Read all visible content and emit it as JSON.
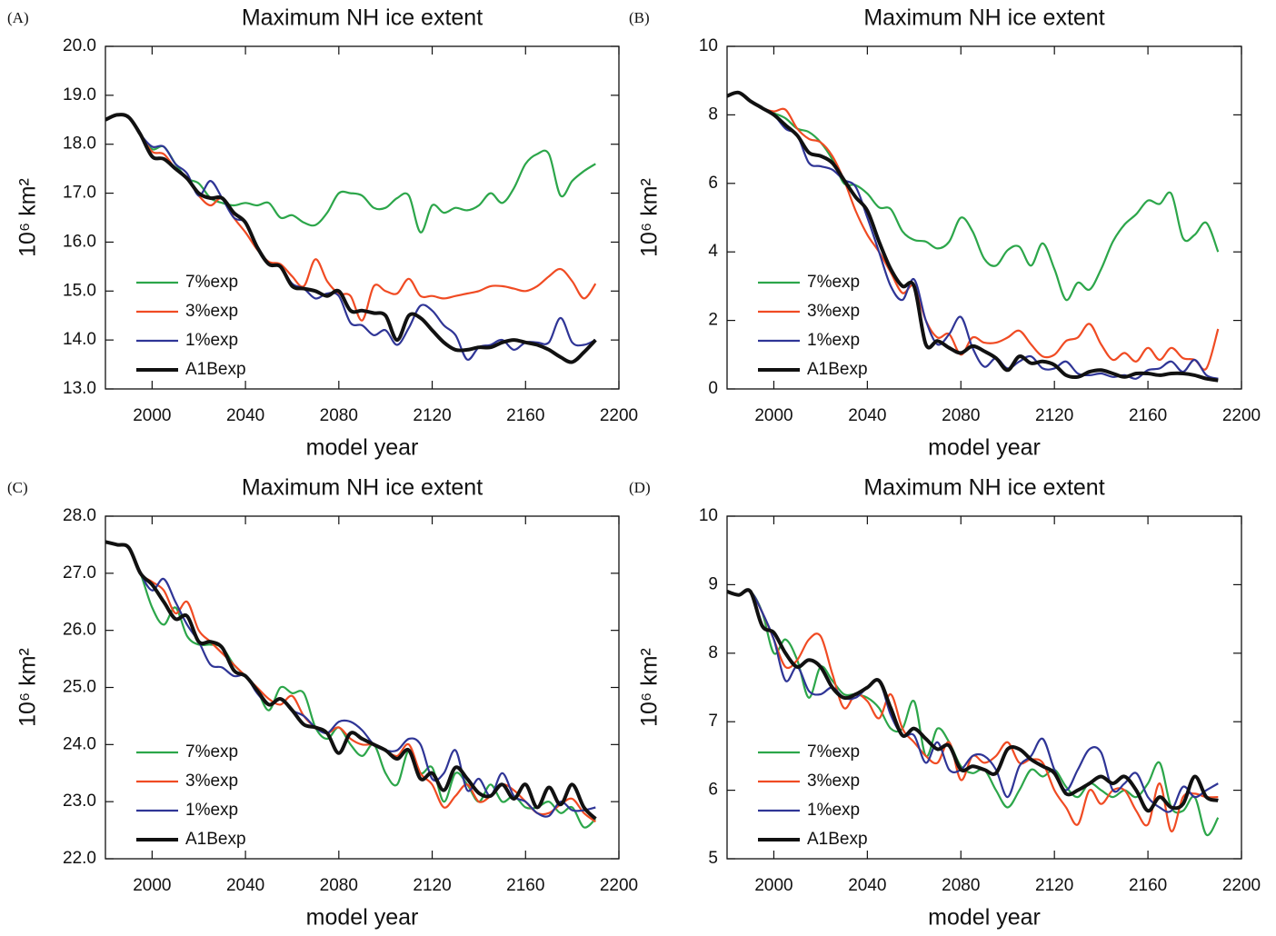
{
  "chart_data": [
    {
      "type": "line",
      "label": "(A)",
      "title": "Maximum NH ice extent",
      "xlabel": "model year",
      "ylabel": "10⁶ km²",
      "legend": "lower left",
      "xlim": [
        1980,
        2200
      ],
      "xticks": [
        2000,
        2040,
        2080,
        2120,
        2160,
        2200
      ],
      "ylim": [
        13,
        20
      ],
      "yticks": [
        {
          "value": 13,
          "label": "13.0"
        },
        {
          "value": 14,
          "label": "14.0"
        },
        {
          "value": 15,
          "label": "15.0"
        },
        {
          "value": 16,
          "label": "16.0"
        },
        {
          "value": 17,
          "label": "17.0"
        },
        {
          "value": 18,
          "label": "18.0"
        },
        {
          "value": 19,
          "label": "19.0"
        },
        {
          "value": 20,
          "label": "20.0"
        }
      ],
      "x": [
        1980,
        1985,
        1990,
        1995,
        2000,
        2005,
        2010,
        2015,
        2020,
        2025,
        2030,
        2035,
        2040,
        2045,
        2050,
        2055,
        2060,
        2065,
        2070,
        2075,
        2080,
        2085,
        2090,
        2095,
        2100,
        2105,
        2110,
        2115,
        2120,
        2125,
        2130,
        2135,
        2140,
        2145,
        2150,
        2155,
        2160,
        2165,
        2170,
        2175,
        2180,
        2185,
        2190
      ],
      "series": [
        {
          "name": "7%exp",
          "color": "#2ca64a",
          "values": [
            18.5,
            18.6,
            18.55,
            18.2,
            17.9,
            17.95,
            17.6,
            17.3,
            17.2,
            16.9,
            16.8,
            16.75,
            16.8,
            16.75,
            16.8,
            16.5,
            16.55,
            16.4,
            16.35,
            16.6,
            17.0,
            17.0,
            16.95,
            16.7,
            16.7,
            16.9,
            16.95,
            16.2,
            16.75,
            16.6,
            16.7,
            16.65,
            16.75,
            17.0,
            16.8,
            17.1,
            17.6,
            17.8,
            17.8,
            16.95,
            17.25,
            17.45,
            17.6
          ]
        },
        {
          "name": "3%exp",
          "color": "#f04b23",
          "values": [
            18.5,
            18.6,
            18.55,
            18.2,
            17.85,
            17.8,
            17.5,
            17.3,
            16.95,
            16.75,
            16.9,
            16.5,
            16.2,
            15.85,
            15.6,
            15.55,
            15.3,
            15.1,
            15.65,
            15.2,
            14.95,
            14.9,
            14.4,
            15.1,
            15.0,
            14.95,
            15.25,
            14.9,
            14.9,
            14.85,
            14.9,
            14.95,
            15.0,
            15.1,
            15.1,
            15.05,
            15.0,
            15.1,
            15.3,
            15.45,
            15.2,
            14.85,
            15.15
          ]
        },
        {
          "name": "1%exp",
          "color": "#2f3596",
          "values": [
            18.5,
            18.6,
            18.55,
            18.2,
            17.95,
            17.95,
            17.6,
            17.4,
            16.95,
            17.25,
            16.9,
            16.5,
            16.4,
            15.9,
            15.55,
            15.5,
            15.15,
            15.05,
            14.85,
            14.95,
            14.9,
            14.35,
            14.3,
            14.1,
            14.2,
            13.9,
            14.25,
            14.7,
            14.6,
            14.3,
            14.1,
            13.6,
            13.85,
            13.9,
            14.0,
            13.8,
            13.95,
            13.95,
            13.95,
            14.45,
            13.95,
            13.9,
            14.0
          ]
        },
        {
          "name": "A1Bexp",
          "color": "#111111",
          "values": [
            18.5,
            18.6,
            18.55,
            18.2,
            17.75,
            17.7,
            17.5,
            17.3,
            17.0,
            16.9,
            16.9,
            16.6,
            16.4,
            15.9,
            15.55,
            15.5,
            15.1,
            15.05,
            15.0,
            14.9,
            15.0,
            14.6,
            14.6,
            14.55,
            14.5,
            14.0,
            14.5,
            14.45,
            14.2,
            13.95,
            13.8,
            13.8,
            13.85,
            13.85,
            13.95,
            14.0,
            13.95,
            13.9,
            13.8,
            13.65,
            13.55,
            13.75,
            14.0
          ]
        }
      ]
    },
    {
      "type": "line",
      "label": "(B)",
      "title": "Maximum NH ice extent",
      "xlabel": "model year",
      "ylabel": "10⁶ km²",
      "legend": "lower left",
      "xlim": [
        1980,
        2200
      ],
      "xticks": [
        2000,
        2040,
        2080,
        2120,
        2160,
        2200
      ],
      "ylim": [
        0,
        10
      ],
      "yticks": [
        0,
        2,
        4,
        6,
        8,
        10
      ],
      "x": [
        1980,
        1985,
        1990,
        1995,
        2000,
        2005,
        2010,
        2015,
        2020,
        2025,
        2030,
        2035,
        2040,
        2045,
        2050,
        2055,
        2060,
        2065,
        2070,
        2075,
        2080,
        2085,
        2090,
        2095,
        2100,
        2105,
        2110,
        2115,
        2120,
        2125,
        2130,
        2135,
        2140,
        2145,
        2150,
        2155,
        2160,
        2165,
        2170,
        2175,
        2180,
        2185,
        2190
      ],
      "series": [
        {
          "name": "7%exp",
          "color": "#2ca64a",
          "values": [
            8.55,
            8.65,
            8.4,
            8.2,
            8.05,
            7.9,
            7.6,
            7.5,
            7.2,
            6.7,
            6.0,
            5.95,
            5.7,
            5.3,
            5.25,
            4.6,
            4.35,
            4.3,
            4.1,
            4.3,
            5.0,
            4.6,
            3.8,
            3.6,
            4.05,
            4.15,
            3.6,
            4.25,
            3.5,
            2.6,
            3.1,
            2.9,
            3.5,
            4.3,
            4.8,
            5.1,
            5.5,
            5.4,
            5.7,
            4.4,
            4.5,
            4.85,
            4.0
          ]
        },
        {
          "name": "3%exp",
          "color": "#f04b23",
          "values": [
            8.55,
            8.65,
            8.4,
            8.2,
            8.1,
            8.15,
            7.6,
            7.3,
            7.2,
            6.8,
            6.1,
            5.2,
            4.5,
            4.0,
            3.4,
            2.8,
            3.0,
            2.0,
            1.5,
            1.6,
            1.0,
            1.5,
            1.35,
            1.35,
            1.5,
            1.7,
            1.3,
            0.95,
            1.0,
            1.4,
            1.5,
            1.9,
            1.3,
            0.85,
            1.05,
            0.8,
            1.2,
            0.85,
            1.2,
            0.9,
            0.85,
            0.6,
            1.75
          ]
        },
        {
          "name": "1%exp",
          "color": "#2f3596",
          "values": [
            8.55,
            8.65,
            8.4,
            8.2,
            8.0,
            7.6,
            7.4,
            6.6,
            6.5,
            6.4,
            6.1,
            5.9,
            5.0,
            4.0,
            3.0,
            2.6,
            3.2,
            2.0,
            1.3,
            1.6,
            2.1,
            1.2,
            0.65,
            0.9,
            0.6,
            0.8,
            0.95,
            0.6,
            0.6,
            0.8,
            0.45,
            0.4,
            0.45,
            0.35,
            0.4,
            0.3,
            0.55,
            0.6,
            0.8,
            0.5,
            0.85,
            0.4,
            0.3
          ]
        },
        {
          "name": "A1Bexp",
          "color": "#111111",
          "values": [
            8.55,
            8.65,
            8.4,
            8.2,
            8.0,
            7.7,
            7.4,
            6.9,
            6.8,
            6.6,
            6.1,
            5.6,
            5.2,
            4.3,
            3.5,
            3.0,
            3.0,
            1.3,
            1.4,
            1.2,
            1.05,
            1.25,
            1.1,
            0.9,
            0.55,
            0.95,
            0.75,
            0.8,
            0.7,
            0.4,
            0.35,
            0.5,
            0.55,
            0.45,
            0.35,
            0.45,
            0.45,
            0.4,
            0.45,
            0.45,
            0.4,
            0.3,
            0.25
          ]
        }
      ]
    },
    {
      "type": "line",
      "label": "(C)",
      "title": "Maximum NH ice extent",
      "xlabel": "model year",
      "ylabel": "10⁶ km²",
      "legend": "lower left",
      "xlim": [
        1980,
        2200
      ],
      "xticks": [
        2000,
        2040,
        2080,
        2120,
        2160,
        2200
      ],
      "ylim": [
        22,
        28
      ],
      "yticks": [
        {
          "value": 22,
          "label": "22.0"
        },
        {
          "value": 23,
          "label": "23.0"
        },
        {
          "value": 24,
          "label": "24.0"
        },
        {
          "value": 25,
          "label": "25.0"
        },
        {
          "value": 26,
          "label": "26.0"
        },
        {
          "value": 27,
          "label": "27.0"
        },
        {
          "value": 28,
          "label": "28.0"
        }
      ],
      "x": [
        1980,
        1985,
        1990,
        1995,
        2000,
        2005,
        2010,
        2015,
        2020,
        2025,
        2030,
        2035,
        2040,
        2045,
        2050,
        2055,
        2060,
        2065,
        2070,
        2075,
        2080,
        2085,
        2090,
        2095,
        2100,
        2105,
        2110,
        2115,
        2120,
        2125,
        2130,
        2135,
        2140,
        2145,
        2150,
        2155,
        2160,
        2165,
        2170,
        2175,
        2180,
        2185,
        2190
      ],
      "series": [
        {
          "name": "7%exp",
          "color": "#2ca64a",
          "values": [
            27.55,
            27.5,
            27.45,
            27.0,
            26.4,
            26.1,
            26.4,
            25.9,
            25.75,
            25.75,
            25.7,
            25.4,
            25.2,
            24.95,
            24.6,
            25.0,
            24.9,
            24.9,
            24.3,
            24.1,
            24.3,
            24.0,
            23.8,
            24.0,
            23.5,
            23.3,
            23.9,
            23.5,
            23.6,
            23.0,
            23.5,
            23.3,
            23.0,
            23.3,
            23.0,
            23.1,
            22.9,
            22.9,
            23.0,
            22.8,
            22.9,
            22.55,
            22.7
          ]
        },
        {
          "name": "3%exp",
          "color": "#f04b23",
          "values": [
            27.55,
            27.5,
            27.45,
            27.0,
            26.85,
            26.7,
            26.3,
            26.5,
            26.0,
            25.8,
            25.6,
            25.4,
            25.2,
            25.0,
            24.8,
            24.7,
            24.85,
            24.5,
            24.3,
            24.2,
            24.3,
            24.1,
            24.0,
            24.0,
            23.9,
            23.8,
            24.0,
            23.5,
            23.3,
            22.9,
            23.1,
            23.3,
            23.0,
            23.1,
            23.3,
            23.2,
            23.0,
            22.8,
            22.8,
            22.95,
            23.05,
            22.8,
            22.65
          ]
        },
        {
          "name": "1%exp",
          "color": "#2f3596",
          "values": [
            27.55,
            27.5,
            27.45,
            27.0,
            26.7,
            26.9,
            26.5,
            26.1,
            25.8,
            25.4,
            25.35,
            25.2,
            25.2,
            24.9,
            24.7,
            24.8,
            24.6,
            24.5,
            24.3,
            24.2,
            24.4,
            24.4,
            24.25,
            24.0,
            23.9,
            23.9,
            24.1,
            24.0,
            23.4,
            23.5,
            23.9,
            23.2,
            23.4,
            23.1,
            23.5,
            23.1,
            23.0,
            22.8,
            22.75,
            23.0,
            22.85,
            22.85,
            22.9
          ]
        },
        {
          "name": "A1Bexp",
          "color": "#111111",
          "values": [
            27.55,
            27.5,
            27.45,
            27.0,
            26.8,
            26.5,
            26.2,
            26.25,
            25.8,
            25.8,
            25.7,
            25.3,
            25.2,
            24.95,
            24.7,
            24.8,
            24.6,
            24.35,
            24.3,
            24.2,
            23.85,
            24.2,
            24.1,
            24.0,
            23.9,
            23.75,
            23.9,
            23.4,
            23.5,
            23.2,
            23.6,
            23.4,
            23.15,
            23.1,
            23.3,
            23.05,
            23.3,
            22.9,
            23.25,
            22.95,
            23.3,
            22.9,
            22.7
          ]
        }
      ]
    },
    {
      "type": "line",
      "label": "(D)",
      "title": "Maximum NH ice extent",
      "xlabel": "model year",
      "ylabel": "10⁶ km²",
      "legend": "lower left",
      "xlim": [
        1980,
        2200
      ],
      "xticks": [
        2000,
        2040,
        2080,
        2120,
        2160,
        2200
      ],
      "ylim": [
        5,
        10
      ],
      "yticks": [
        5,
        6,
        7,
        8,
        9,
        10
      ],
      "x": [
        1980,
        1985,
        1990,
        1995,
        2000,
        2005,
        2010,
        2015,
        2020,
        2025,
        2030,
        2035,
        2040,
        2045,
        2050,
        2055,
        2060,
        2065,
        2070,
        2075,
        2080,
        2085,
        2090,
        2095,
        2100,
        2105,
        2110,
        2115,
        2120,
        2125,
        2130,
        2135,
        2140,
        2145,
        2150,
        2155,
        2160,
        2165,
        2170,
        2175,
        2180,
        2185,
        2190
      ],
      "series": [
        {
          "name": "7%exp",
          "color": "#2ca64a",
          "values": [
            8.9,
            8.85,
            8.9,
            8.6,
            8.0,
            8.2,
            7.9,
            7.35,
            7.8,
            7.6,
            7.4,
            7.4,
            7.35,
            7.2,
            6.9,
            6.9,
            7.3,
            6.5,
            6.9,
            6.7,
            6.35,
            6.25,
            6.3,
            6.0,
            5.75,
            6.0,
            6.3,
            6.2,
            6.3,
            6.05,
            5.9,
            6.1,
            6.0,
            5.9,
            6.0,
            5.9,
            6.1,
            6.4,
            5.75,
            5.7,
            5.9,
            5.35,
            5.6
          ]
        },
        {
          "name": "3%exp",
          "color": "#f04b23",
          "values": [
            8.9,
            8.85,
            8.9,
            8.6,
            8.2,
            7.8,
            7.9,
            8.2,
            8.25,
            7.7,
            7.2,
            7.4,
            7.3,
            7.05,
            7.4,
            6.9,
            6.7,
            6.5,
            6.4,
            6.7,
            6.15,
            6.5,
            6.4,
            6.5,
            6.7,
            6.4,
            6.45,
            6.4,
            6.0,
            5.75,
            5.5,
            6.0,
            5.8,
            6.0,
            6.0,
            5.7,
            5.5,
            6.1,
            5.4,
            5.9,
            5.95,
            5.9,
            5.9
          ]
        },
        {
          "name": "1%exp",
          "color": "#2f3596",
          "values": [
            8.9,
            8.85,
            8.9,
            8.6,
            8.2,
            7.6,
            7.8,
            7.45,
            7.4,
            7.5,
            7.35,
            7.35,
            7.5,
            7.6,
            7.1,
            6.8,
            6.8,
            6.4,
            6.7,
            6.3,
            6.3,
            6.5,
            6.5,
            6.3,
            5.9,
            6.35,
            6.5,
            6.75,
            6.3,
            6.0,
            6.3,
            6.6,
            6.55,
            6.0,
            6.1,
            6.25,
            5.9,
            5.75,
            5.7,
            6.05,
            5.9,
            6.0,
            6.1
          ]
        },
        {
          "name": "A1Bexp",
          "color": "#111111",
          "values": [
            8.9,
            8.85,
            8.9,
            8.4,
            8.3,
            8.0,
            7.8,
            7.9,
            7.8,
            7.5,
            7.35,
            7.4,
            7.5,
            7.6,
            7.2,
            6.8,
            6.9,
            6.75,
            6.6,
            6.65,
            6.3,
            6.35,
            6.3,
            6.25,
            6.6,
            6.6,
            6.45,
            6.35,
            6.25,
            5.95,
            6.0,
            6.1,
            6.2,
            6.1,
            6.2,
            6.0,
            5.7,
            5.9,
            5.75,
            5.8,
            6.2,
            5.9,
            5.85
          ]
        }
      ]
    }
  ]
}
